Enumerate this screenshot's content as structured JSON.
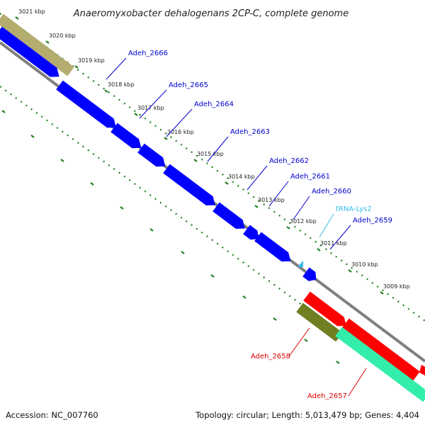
{
  "title": "Anaeromyxobacter dehalogenans 2CP-C, complete genome",
  "footer": {
    "accession": "Accession: NC_007760",
    "summary": "Topology: circular; Length: 5,013,479 bp; Genes: 4,404"
  },
  "colors": {
    "backbone": "#7f7f7f",
    "gene_forward": "#0000ff",
    "gene_reverse": "#ff0000",
    "trna": "#33bbee",
    "misc_olive": "#6f7f22",
    "misc_tan": "#b3ad6f",
    "misc_aqua": "#33eeaa",
    "tick_dots": "#1f7f1f",
    "label_blue": "#0000cc",
    "label_red": "#dd0000",
    "label_cyan": "#33bbee"
  },
  "ticks": [
    "3021 kbp",
    "3020 kbp",
    "3019 kbp",
    "3018 kbp",
    "3017 kbp",
    "3016 kbp",
    "3015 kbp",
    "3014 kbp",
    "3013 kbp",
    "3012 kbp",
    "3011 kbp",
    "3010 kbp",
    "3009 kbp"
  ],
  "genes": [
    {
      "label": "Adeh_2666",
      "color": "label_blue"
    },
    {
      "label": "Adeh_2665",
      "color": "label_blue"
    },
    {
      "label": "Adeh_2664",
      "color": "label_blue"
    },
    {
      "label": "Adeh_2663",
      "color": "label_blue"
    },
    {
      "label": "Adeh_2662",
      "color": "label_blue"
    },
    {
      "label": "Adeh_2661",
      "color": "label_blue"
    },
    {
      "label": "Adeh_2660",
      "color": "label_blue"
    },
    {
      "label": "tRNA-Lys2",
      "color": "label_cyan"
    },
    {
      "label": "Adeh_2659",
      "color": "label_blue"
    },
    {
      "label": "Adeh_2658",
      "color": "label_red"
    },
    {
      "label": "Adeh_2657",
      "color": "label_red"
    }
  ]
}
